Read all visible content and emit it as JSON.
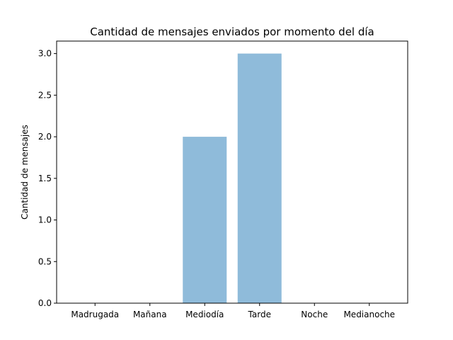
{
  "chart_data": {
    "type": "bar",
    "title": "Cantidad de mensajes enviados por momento del día",
    "xlabel": "",
    "ylabel": "Cantidad de mensajes",
    "categories": [
      "Madrugada",
      "Mañana",
      "Mediodía",
      "Tarde",
      "Noche",
      "Medianoche"
    ],
    "values": [
      0,
      0,
      2,
      3,
      0,
      0
    ],
    "ylim": [
      0,
      3.15
    ],
    "yticks": [
      "0.0",
      "0.5",
      "1.0",
      "1.5",
      "2.0",
      "2.5",
      "3.0"
    ],
    "bar_color": "#8fbbda",
    "grid": false,
    "legend": "none"
  }
}
